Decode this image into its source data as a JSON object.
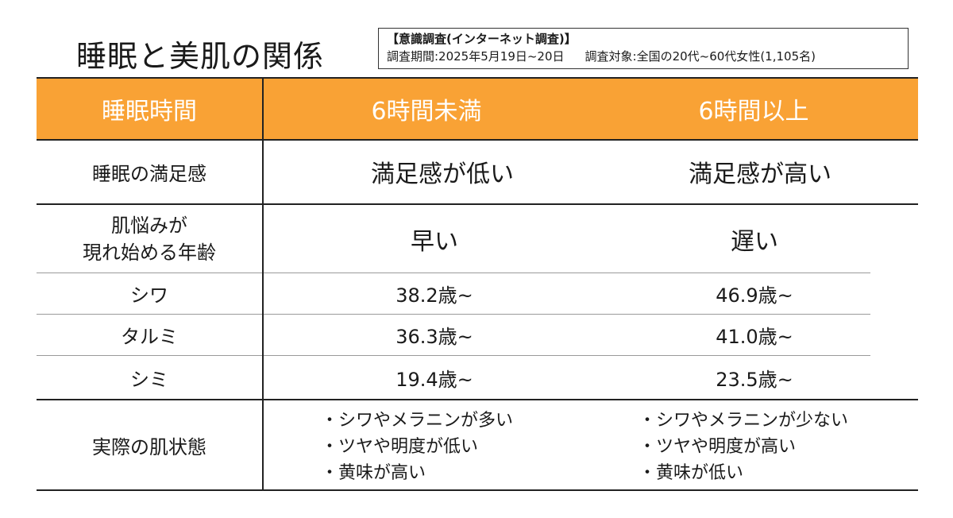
{
  "title": "睡眠と美肌の関係",
  "survey": {
    "line1": "【意識調査(インターネット調査)】",
    "period": "調査期間:2025年5月19日~20日",
    "target": "調査対象:全国の20代~60代女性(1,105名)"
  },
  "header": {
    "col0": "睡眠時間",
    "col1": "6時間未満",
    "col2": "6時間以上"
  },
  "satisfaction": {
    "label": "睡眠の満足感",
    "under6": "満足感が低い",
    "over6": "満足感が高い"
  },
  "onset": {
    "label_line1": "肌悩みが",
    "label_line2": "現れ始める年齢",
    "under6": "早い",
    "over6": "遅い",
    "rows": [
      {
        "label": "シワ",
        "under6": "38.2歳~",
        "over6": "46.9歳~"
      },
      {
        "label": "タルミ",
        "under6": "36.3歳~",
        "over6": "41.0歳~"
      },
      {
        "label": "シミ",
        "under6": "19.4歳~",
        "over6": "23.5歳~"
      }
    ]
  },
  "condition": {
    "label": "実際の肌状態",
    "under6": [
      "シワやメラニンが多い",
      "ツヤや明度が低い",
      "黄味が高い"
    ],
    "over6": [
      "シワやメラニンが少ない",
      "ツヤや明度が高い",
      "黄味が低い"
    ]
  },
  "colors": {
    "header_bg": "#f9a235",
    "header_text": "#ffffff"
  }
}
